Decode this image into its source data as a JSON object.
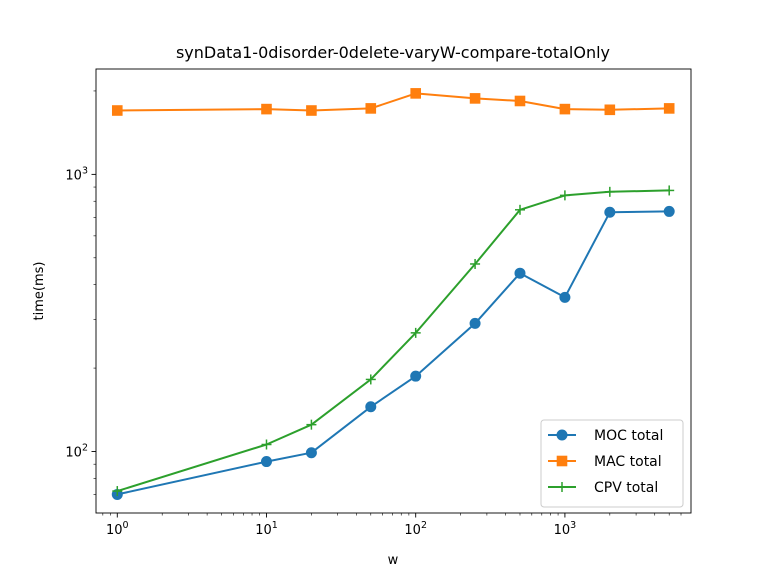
{
  "chart_data": {
    "type": "line",
    "title": "synData1-0disorder-0delete-varyW-compare-totalOnly",
    "xlabel": "w",
    "ylabel": "time(ms)",
    "x_scale": "log",
    "y_scale": "log",
    "xlim": [
      0.72,
      7000
    ],
    "ylim": [
      60,
      2400
    ],
    "x_ticks": [
      {
        "value": 1,
        "base": "10",
        "exp": "0"
      },
      {
        "value": 10,
        "base": "10",
        "exp": "1"
      },
      {
        "value": 100,
        "base": "10",
        "exp": "2"
      },
      {
        "value": 1000,
        "base": "10",
        "exp": "3"
      }
    ],
    "y_ticks": [
      {
        "value": 100,
        "base": "10",
        "exp": "2"
      },
      {
        "value": 1000,
        "base": "10",
        "exp": "3"
      }
    ],
    "grid": false,
    "legend_position": "bottom-right",
    "x": [
      1,
      10,
      20,
      50,
      100,
      250,
      500,
      1000,
      2000,
      5000
    ],
    "series": [
      {
        "name": "MOC total",
        "color": "#1f77b4",
        "marker": "circle",
        "values": [
          70,
          92,
          99,
          145,
          187,
          290,
          440,
          360,
          730,
          735
        ]
      },
      {
        "name": "MAC total",
        "color": "#ff7f0e",
        "marker": "square",
        "values": [
          1700,
          1720,
          1700,
          1730,
          1960,
          1880,
          1840,
          1720,
          1710,
          1730
        ]
      },
      {
        "name": "CPV total",
        "color": "#2ca02c",
        "marker": "plus",
        "values": [
          72,
          106,
          125,
          182,
          268,
          475,
          745,
          840,
          865,
          875
        ]
      }
    ]
  }
}
